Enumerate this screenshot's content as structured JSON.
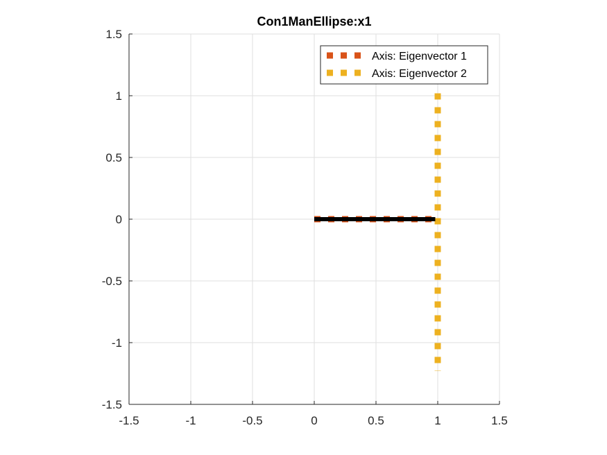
{
  "chart_data": {
    "type": "line",
    "title": "Con1ManEllipse:x1",
    "xlabel": "",
    "ylabel": "",
    "xlim": [
      -1.5,
      1.5
    ],
    "ylim": [
      -1.5,
      1.5
    ],
    "xticks": [
      -1.5,
      -1,
      -0.5,
      0,
      0.5,
      1,
      1.5
    ],
    "yticks": [
      -1.5,
      -1,
      -0.5,
      0,
      0.5,
      1,
      1.5
    ],
    "xtick_labels": [
      "-1.5",
      "-1",
      "-0.5",
      "0",
      "0.5",
      "1",
      "1.5"
    ],
    "ytick_labels": [
      "-1.5",
      "-1",
      "-0.5",
      "0",
      "0.5",
      "1",
      "1.5"
    ],
    "grid": true,
    "legend_position": "top-right",
    "series": [
      {
        "name": "Axis: Eigenvector 1",
        "color": "#D95319",
        "style": "dotted-square",
        "x": [
          0,
          0.98
        ],
        "y": [
          0,
          0
        ]
      },
      {
        "name": "Axis: Eigenvector 2",
        "color": "#EDB120",
        "style": "dotted-square",
        "x": [
          1,
          1
        ],
        "y": [
          1.02,
          -1.23
        ]
      },
      {
        "color": "#000000",
        "style": "solid-thick",
        "x": [
          0,
          0.98
        ],
        "y": [
          0,
          0
        ]
      }
    ]
  }
}
